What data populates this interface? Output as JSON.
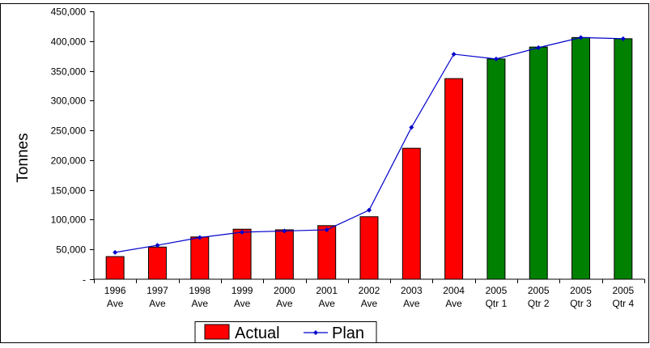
{
  "chart_data": {
    "type": "bar",
    "ylabel": "Tonnes",
    "ylim": [
      0,
      450000
    ],
    "y_ticks": [
      {
        "value": 0,
        "label": "-"
      },
      {
        "value": 50000,
        "label": "50,000"
      },
      {
        "value": 100000,
        "label": "100,000"
      },
      {
        "value": 150000,
        "label": "150,000"
      },
      {
        "value": 200000,
        "label": "200,000"
      },
      {
        "value": 250000,
        "label": "250,000"
      },
      {
        "value": 300000,
        "label": "300,000"
      },
      {
        "value": 350000,
        "label": "350,000"
      },
      {
        "value": 400000,
        "label": "400,000"
      },
      {
        "value": 450000,
        "label": "450,000"
      }
    ],
    "categories": [
      [
        "1996",
        "Ave"
      ],
      [
        "1997",
        "Ave"
      ],
      [
        "1998",
        "Ave"
      ],
      [
        "1999",
        "Ave"
      ],
      [
        "2000",
        "Ave"
      ],
      [
        "2001",
        "Ave"
      ],
      [
        "2002",
        "Ave"
      ],
      [
        "2003",
        "Ave"
      ],
      [
        "2004",
        "Ave"
      ],
      [
        "2005",
        "Qtr 1"
      ],
      [
        "2005",
        "Qtr 2"
      ],
      [
        "2005",
        "Qtr 3"
      ],
      [
        "2005",
        "Qtr 4"
      ]
    ],
    "series": [
      {
        "name": "Actual",
        "kind": "bar",
        "color": "#ff0000",
        "values": [
          38000,
          54000,
          71000,
          84000,
          83000,
          90000,
          105000,
          220000,
          337000,
          370000,
          390000,
          406000,
          404000
        ],
        "bar_colors": [
          "#ff0000",
          "#ff0000",
          "#ff0000",
          "#ff0000",
          "#ff0000",
          "#ff0000",
          "#ff0000",
          "#ff0000",
          "#ff0000",
          "#008000",
          "#008000",
          "#008000",
          "#008000"
        ]
      },
      {
        "name": "Plan",
        "kind": "line",
        "color": "#0000cc",
        "values": [
          45000,
          57000,
          70000,
          79000,
          81000,
          83000,
          116000,
          255000,
          378000,
          370000,
          389000,
          406000,
          404000
        ]
      }
    ],
    "legend_position": "bottom"
  }
}
